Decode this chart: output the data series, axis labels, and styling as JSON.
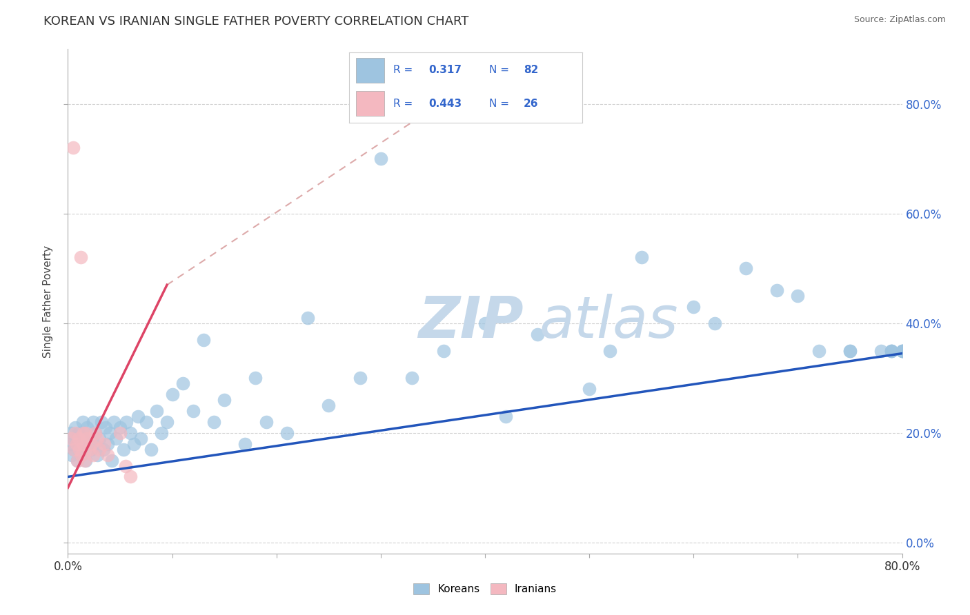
{
  "title": "KOREAN VS IRANIAN SINGLE FATHER POVERTY CORRELATION CHART",
  "source_text": "Source: ZipAtlas.com",
  "ylabel": "Single Father Poverty",
  "korean_R": 0.317,
  "korean_N": 82,
  "iranian_R": 0.443,
  "iranian_N": 26,
  "xlim": [
    0.0,
    0.8
  ],
  "ylim": [
    -0.02,
    0.9
  ],
  "y_ticks": [
    0.0,
    0.2,
    0.4,
    0.6,
    0.8
  ],
  "x_ticks": [
    0.0,
    0.1,
    0.2,
    0.3,
    0.4,
    0.5,
    0.6,
    0.7,
    0.8
  ],
  "korean_color": "#9ec4e0",
  "korean_edge_color": "#6aabe0",
  "iranian_color": "#f4b8c0",
  "iranian_edge_color": "#e07080",
  "korean_line_color": "#2255bb",
  "iranian_line_color": "#dd4466",
  "iranian_dashed_color": "#ddaaaa",
  "watermark_zip_color": "#c5d8ea",
  "watermark_atlas_color": "#c5d8ea",
  "grid_color": "#cccccc",
  "title_color": "#333333",
  "tick_label_color": "#3366cc",
  "korean_line": {
    "x0": 0.0,
    "y0": 0.12,
    "x1": 0.8,
    "y1": 0.345
  },
  "iranian_line": {
    "x0": 0.0,
    "y0": 0.1,
    "x1": 0.095,
    "y1": 0.47
  },
  "iranian_dashed_line": {
    "x0": 0.095,
    "y0": 0.47,
    "x1": 0.38,
    "y1": 0.83
  },
  "korean_points": {
    "x": [
      0.002,
      0.003,
      0.004,
      0.005,
      0.006,
      0.007,
      0.008,
      0.009,
      0.01,
      0.011,
      0.012,
      0.013,
      0.014,
      0.015,
      0.016,
      0.017,
      0.018,
      0.02,
      0.022,
      0.024,
      0.025,
      0.026,
      0.028,
      0.03,
      0.032,
      0.034,
      0.036,
      0.038,
      0.04,
      0.042,
      0.044,
      0.046,
      0.05,
      0.053,
      0.056,
      0.06,
      0.063,
      0.067,
      0.07,
      0.075,
      0.08,
      0.085,
      0.09,
      0.095,
      0.1,
      0.11,
      0.12,
      0.13,
      0.14,
      0.15,
      0.17,
      0.18,
      0.19,
      0.21,
      0.23,
      0.25,
      0.28,
      0.3,
      0.33,
      0.36,
      0.4,
      0.42,
      0.45,
      0.5,
      0.52,
      0.55,
      0.6,
      0.62,
      0.65,
      0.68,
      0.7,
      0.72,
      0.75,
      0.75,
      0.78,
      0.79,
      0.79,
      0.79,
      0.8,
      0.8,
      0.8,
      0.8
    ],
    "y": [
      0.18,
      0.2,
      0.16,
      0.19,
      0.17,
      0.21,
      0.18,
      0.15,
      0.2,
      0.17,
      0.19,
      0.16,
      0.22,
      0.18,
      0.2,
      0.15,
      0.21,
      0.19,
      0.17,
      0.22,
      0.18,
      0.2,
      0.16,
      0.19,
      0.22,
      0.17,
      0.21,
      0.18,
      0.2,
      0.15,
      0.22,
      0.19,
      0.21,
      0.17,
      0.22,
      0.2,
      0.18,
      0.23,
      0.19,
      0.22,
      0.17,
      0.24,
      0.2,
      0.22,
      0.27,
      0.29,
      0.24,
      0.37,
      0.22,
      0.26,
      0.18,
      0.3,
      0.22,
      0.2,
      0.41,
      0.25,
      0.3,
      0.7,
      0.3,
      0.35,
      0.4,
      0.23,
      0.38,
      0.28,
      0.35,
      0.52,
      0.43,
      0.4,
      0.5,
      0.46,
      0.45,
      0.35,
      0.35,
      0.35,
      0.35,
      0.35,
      0.35,
      0.35,
      0.35,
      0.35,
      0.35,
      0.35
    ]
  },
  "iranian_points": {
    "x": [
      0.003,
      0.005,
      0.006,
      0.007,
      0.008,
      0.009,
      0.01,
      0.011,
      0.012,
      0.013,
      0.014,
      0.015,
      0.016,
      0.017,
      0.018,
      0.02,
      0.022,
      0.024,
      0.026,
      0.028,
      0.03,
      0.035,
      0.038,
      0.05,
      0.055,
      0.06
    ],
    "y": [
      0.19,
      0.72,
      0.17,
      0.2,
      0.18,
      0.15,
      0.19,
      0.17,
      0.52,
      0.16,
      0.18,
      0.2,
      0.15,
      0.2,
      0.19,
      0.17,
      0.18,
      0.16,
      0.2,
      0.19,
      0.17,
      0.18,
      0.16,
      0.2,
      0.14,
      0.12
    ]
  }
}
